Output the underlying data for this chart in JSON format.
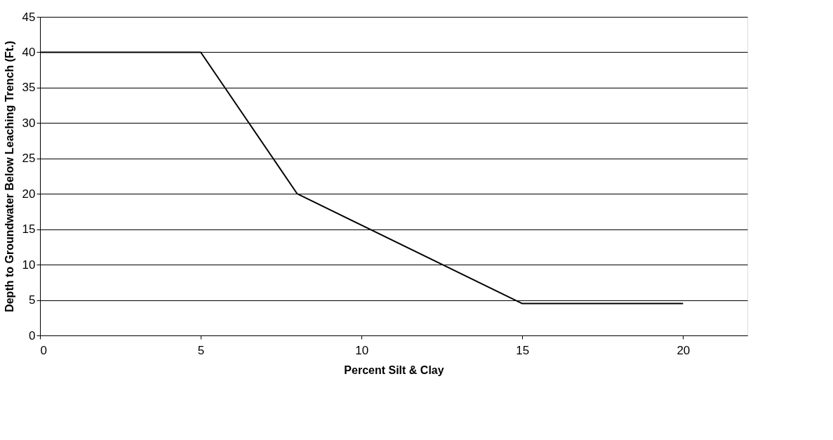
{
  "chart_data": {
    "type": "line",
    "xlabel": "Percent Silt & Clay",
    "ylabel": "Depth to Groundwater Below Leaching Trench (Ft.)",
    "x": [
      0,
      5,
      8,
      15,
      20
    ],
    "series": [
      {
        "color": "#000000",
        "values": [
          40,
          40,
          20,
          4.5,
          4.5
        ]
      }
    ],
    "xlim": [
      0,
      22
    ],
    "xticks": [
      0,
      5,
      10,
      15,
      20
    ],
    "ylim": [
      0,
      45
    ],
    "yticks": [
      0,
      5,
      10,
      15,
      20,
      25,
      30,
      35,
      40,
      45
    ],
    "grid": "y",
    "legend": false,
    "marker": "none",
    "line_style": "solid"
  }
}
